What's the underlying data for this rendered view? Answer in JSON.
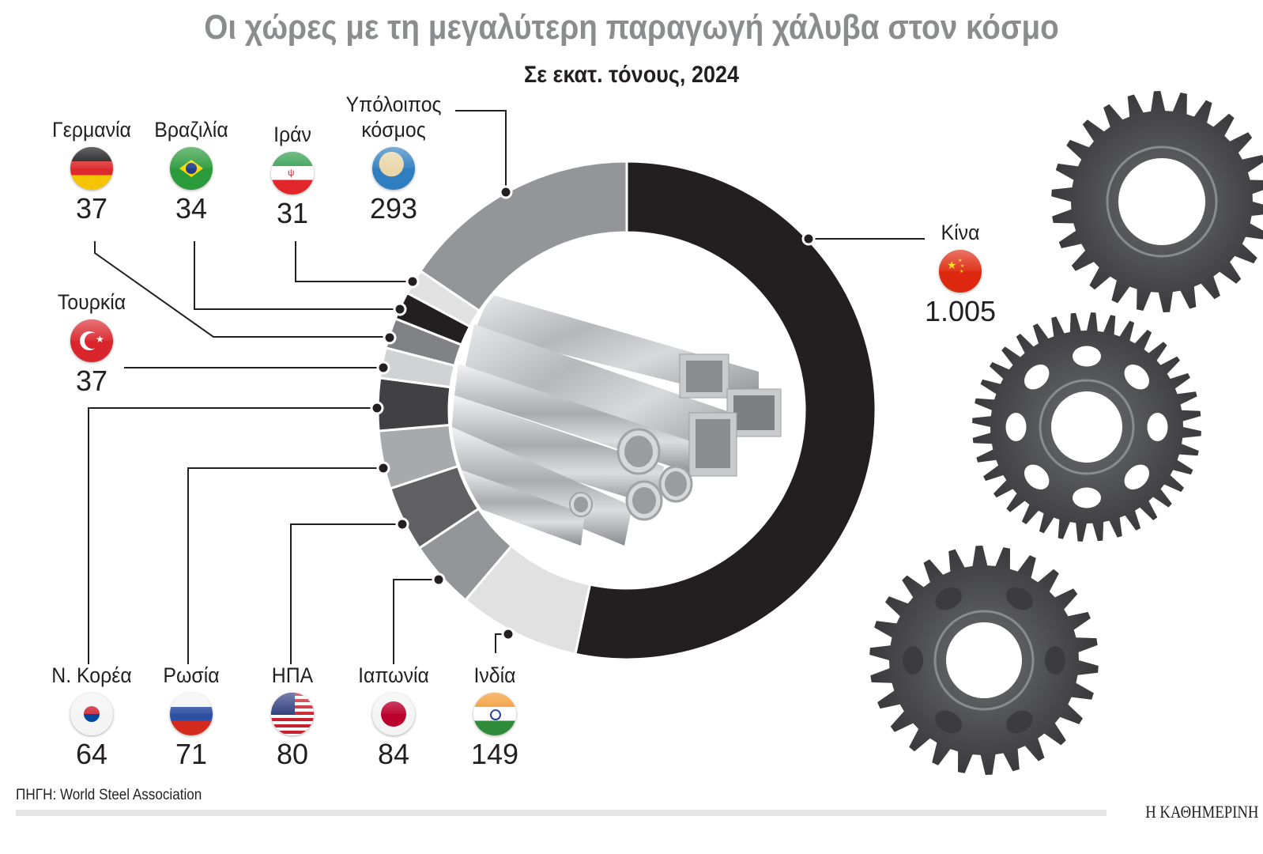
{
  "header": {
    "title": "Οι χώρες με τη μεγαλύτερη παραγωγή χάλυβα στον κόσμο",
    "subtitle": "Σε εκατ. τόνους, 2024"
  },
  "countries": {
    "china": {
      "name": "Κίνα",
      "value": "1.005",
      "flag": "china-flag"
    },
    "india": {
      "name": "Ινδία",
      "value": "149",
      "flag": "india-flag"
    },
    "japan": {
      "name": "Ιαπωνία",
      "value": "84",
      "flag": "japan-flag"
    },
    "usa": {
      "name": "ΗΠΑ",
      "value": "80",
      "flag": "usa-flag"
    },
    "russia": {
      "name": "Ρωσία",
      "value": "71",
      "flag": "russia-flag"
    },
    "south_korea": {
      "name": "Ν. Κορέα",
      "value": "64",
      "flag": "south-korea-flag"
    },
    "turkey": {
      "name": "Τουρκία",
      "value": "37",
      "flag": "turkey-flag"
    },
    "germany": {
      "name": "Γερμανία",
      "value": "37",
      "flag": "germany-flag"
    },
    "brazil": {
      "name": "Βραζιλία",
      "value": "34",
      "flag": "brazil-flag"
    },
    "iran": {
      "name": "Ιράν",
      "value": "31",
      "flag": "iran-flag"
    },
    "rest": {
      "name_line1": "Υπόλοιπος",
      "name_line2": "κόσμος",
      "value": "293",
      "flag": "globe-icon"
    }
  },
  "footer": {
    "source": "ΠΗΓΗ: World Steel Association",
    "brand": "Η ΚΑΘΗΜΕΡΙΝΗ"
  },
  "chart_data": {
    "type": "pie",
    "subtype": "donut",
    "title": "Οι χώρες με τη μεγαλύτερη παραγωγή χάλυβα στον κόσμο",
    "subtitle": "Σε εκατ. τόνους, 2024",
    "unit": "εκατ. τόνοι",
    "year": 2024,
    "categories": [
      "Κίνα",
      "Ινδία",
      "Ιαπωνία",
      "ΗΠΑ",
      "Ρωσία",
      "Ν. Κορέα",
      "Τουρκία",
      "Γερμανία",
      "Βραζιλία",
      "Ιράν",
      "Υπόλοιπος κόσμος"
    ],
    "values": [
      1005,
      149,
      84,
      80,
      71,
      64,
      37,
      37,
      34,
      31,
      293
    ],
    "colors": [
      "#231f20",
      "#e1e1e2",
      "#939598",
      "#606062",
      "#a7a9ac",
      "#414042",
      "#d1d2d4",
      "#808285",
      "#231f20",
      "#e1e1e2",
      "#939598"
    ],
    "start_angle_deg": 0,
    "direction": "clockwise",
    "source": "World Steel Association",
    "legend": "labels with flags around donut"
  }
}
